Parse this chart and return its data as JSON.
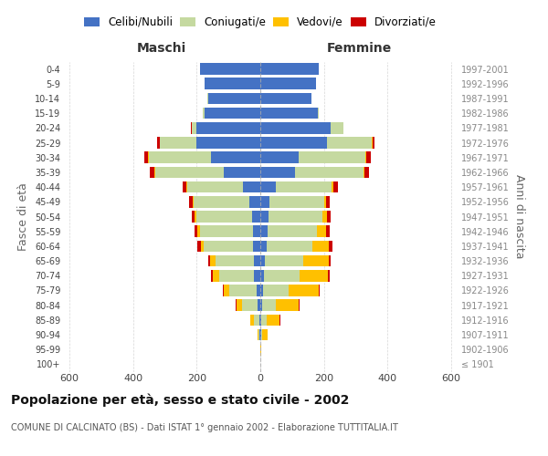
{
  "age_groups": [
    "100+",
    "95-99",
    "90-94",
    "85-89",
    "80-84",
    "75-79",
    "70-74",
    "65-69",
    "60-64",
    "55-59",
    "50-54",
    "45-49",
    "40-44",
    "35-39",
    "30-34",
    "25-29",
    "20-24",
    "15-19",
    "10-14",
    "5-9",
    "0-4"
  ],
  "birth_years": [
    "≤ 1901",
    "1902-1906",
    "1907-1911",
    "1912-1916",
    "1917-1921",
    "1922-1926",
    "1927-1931",
    "1932-1936",
    "1937-1941",
    "1942-1946",
    "1947-1951",
    "1952-1956",
    "1957-1961",
    "1962-1966",
    "1967-1971",
    "1972-1976",
    "1977-1981",
    "1982-1986",
    "1987-1991",
    "1992-1996",
    "1997-2001"
  ],
  "maschi": {
    "celibi": [
      0,
      0,
      2,
      3,
      8,
      12,
      20,
      20,
      22,
      24,
      27,
      35,
      55,
      115,
      155,
      200,
      200,
      175,
      165,
      175,
      190
    ],
    "coniugati": [
      0,
      0,
      5,
      18,
      48,
      85,
      110,
      120,
      155,
      165,
      175,
      175,
      175,
      215,
      195,
      115,
      15,
      5,
      2,
      0,
      0
    ],
    "vedovi": [
      0,
      0,
      3,
      10,
      20,
      18,
      20,
      18,
      10,
      8,
      5,
      3,
      3,
      3,
      2,
      2,
      0,
      0,
      0,
      0,
      0
    ],
    "divorziati": [
      0,
      0,
      0,
      2,
      2,
      2,
      5,
      5,
      12,
      10,
      8,
      10,
      12,
      15,
      12,
      8,
      2,
      0,
      0,
      0,
      0
    ]
  },
  "femmine": {
    "nubili": [
      0,
      1,
      2,
      3,
      5,
      8,
      12,
      15,
      20,
      22,
      25,
      30,
      50,
      110,
      120,
      210,
      220,
      180,
      160,
      175,
      185
    ],
    "coniugate": [
      0,
      0,
      5,
      18,
      45,
      80,
      110,
      120,
      145,
      155,
      170,
      170,
      175,
      215,
      210,
      140,
      40,
      5,
      2,
      0,
      0
    ],
    "vedove": [
      0,
      2,
      15,
      40,
      70,
      95,
      90,
      80,
      50,
      30,
      15,
      8,
      5,
      3,
      3,
      2,
      0,
      0,
      0,
      0,
      0
    ],
    "divorziate": [
      0,
      0,
      0,
      2,
      2,
      3,
      5,
      5,
      12,
      12,
      10,
      10,
      15,
      15,
      15,
      8,
      2,
      0,
      0,
      0,
      0
    ]
  },
  "colors": {
    "celibi_nubili": "#4472c4",
    "coniugati": "#c5d9a0",
    "vedovi": "#ffc000",
    "divorziati": "#cc0000"
  },
  "title": "Popolazione per età, sesso e stato civile - 2002",
  "subtitle": "COMUNE DI CALCINATO (BS) - Dati ISTAT 1° gennaio 2002 - Elaborazione TUTTITALIA.IT",
  "label_maschi": "Maschi",
  "label_femmine": "Femmine",
  "ylabel_left": "Fasce di età",
  "ylabel_right": "Anni di nascita",
  "xlim": 620,
  "background_color": "#ffffff",
  "legend_labels": [
    "Celibi/Nubili",
    "Coniugati/e",
    "Vedovi/e",
    "Divorziati/e"
  ],
  "legend_colors": [
    "#4472c4",
    "#c5d9a0",
    "#ffc000",
    "#cc0000"
  ]
}
